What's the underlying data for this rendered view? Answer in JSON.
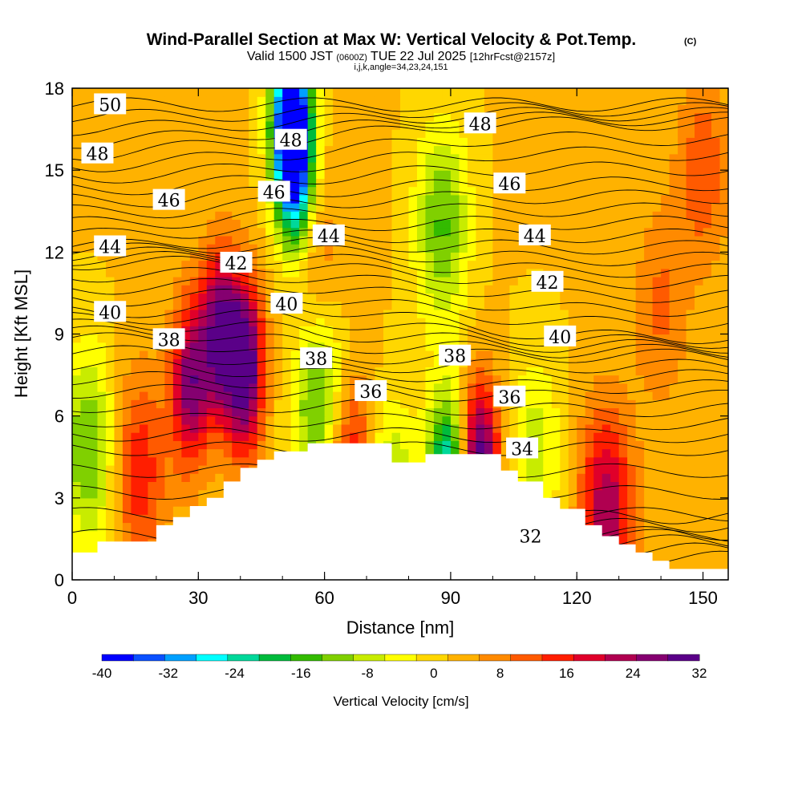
{
  "chart_data": {
    "type": "heatmap",
    "title": "Wind-Parallel Section at Max W: Vertical Velocity & Pot.Temp.",
    "copyright": "(C)",
    "subtitle_parts": [
      "Valid 1500 JST",
      "(0600Z)",
      "TUE 22 Jul 2025",
      "[12hrFcst@2157z]"
    ],
    "subtitle2": "i,j,k,angle=34,23,24,151",
    "xlabel": "Distance [nm]",
    "ylabel": "Height [Kft MSL]",
    "xlim": [
      0,
      156
    ],
    "ylim": [
      0,
      18
    ],
    "x_ticks": [
      "0",
      "30",
      "60",
      "90",
      "120",
      "150"
    ],
    "x_tick_values": [
      0,
      30,
      60,
      90,
      120,
      150
    ],
    "y_ticks": [
      "0",
      "3",
      "6",
      "9",
      "12",
      "15",
      "18"
    ],
    "y_tick_values": [
      0,
      3,
      6,
      9,
      12,
      15,
      18
    ],
    "colorbar": {
      "label": "Vertical Velocity [cm/s]",
      "tick_labels": [
        "-40",
        "-32",
        "-24",
        "-16",
        "-8",
        "0",
        "8",
        "16",
        "24",
        "32"
      ],
      "tick_values": [
        -40,
        -32,
        -24,
        -16,
        -8,
        0,
        8,
        16,
        24,
        32
      ],
      "colors": [
        "#0000ff",
        "#0a50ff",
        "#00a0ff",
        "#00ffff",
        "#00d89a",
        "#00bb3c",
        "#33bb00",
        "#80d000",
        "#c8ec00",
        "#ffff00",
        "#ffd700",
        "#ffb200",
        "#ff8a00",
        "#ff5a00",
        "#ff1e00",
        "#e0002a",
        "#b00050",
        "#850070",
        "#5a0088"
      ]
    },
    "vertical_velocity_centers": [
      {
        "x": 4,
        "y": 4.8,
        "w": -16
      },
      {
        "x": 16,
        "y": 4.0,
        "w": 14
      },
      {
        "x": 28,
        "y": 7.2,
        "w": 24
      },
      {
        "x": 35,
        "y": 9.0,
        "w": 26
      },
      {
        "x": 41,
        "y": 7.8,
        "w": 32
      },
      {
        "x": 52,
        "y": 17.0,
        "w": -40
      },
      {
        "x": 53,
        "y": 15.0,
        "w": -30
      },
      {
        "x": 59,
        "y": 6.5,
        "w": -20
      },
      {
        "x": 58,
        "y": 11.5,
        "w": 8
      },
      {
        "x": 66,
        "y": 4.0,
        "w": 20
      },
      {
        "x": 75,
        "y": 2.8,
        "w": -16
      },
      {
        "x": 88,
        "y": 13.0,
        "w": -16
      },
      {
        "x": 89,
        "y": 3.6,
        "w": -30
      },
      {
        "x": 97,
        "y": 4.0,
        "w": 32
      },
      {
        "x": 110,
        "y": 4.5,
        "w": -10
      },
      {
        "x": 127,
        "y": 2.5,
        "w": 22
      },
      {
        "x": 140,
        "y": 10.0,
        "w": 8
      },
      {
        "x": 150,
        "y": 15.0,
        "w": 10
      }
    ],
    "potential_temperature_contours": [
      {
        "value": "32",
        "x": 109,
        "y": 1.6
      },
      {
        "value": "34",
        "x": 107,
        "y": 4.8
      },
      {
        "value": "36",
        "x": 71,
        "y": 6.9
      },
      {
        "value": "36",
        "x": 104,
        "y": 6.7
      },
      {
        "value": "38",
        "x": 23,
        "y": 8.8
      },
      {
        "value": "38",
        "x": 58,
        "y": 8.1
      },
      {
        "value": "38",
        "x": 91,
        "y": 8.2
      },
      {
        "value": "40",
        "x": 9,
        "y": 9.8
      },
      {
        "value": "40",
        "x": 51,
        "y": 10.1
      },
      {
        "value": "40",
        "x": 116,
        "y": 8.9
      },
      {
        "value": "42",
        "x": 39,
        "y": 11.6
      },
      {
        "value": "42",
        "x": 113,
        "y": 10.9
      },
      {
        "value": "44",
        "x": 9,
        "y": 12.2
      },
      {
        "value": "44",
        "x": 61,
        "y": 12.6
      },
      {
        "value": "44",
        "x": 110,
        "y": 12.6
      },
      {
        "value": "46",
        "x": 23,
        "y": 13.9
      },
      {
        "value": "46",
        "x": 48,
        "y": 14.2
      },
      {
        "value": "46",
        "x": 104,
        "y": 14.5
      },
      {
        "value": "48",
        "x": 6,
        "y": 15.6
      },
      {
        "value": "48",
        "x": 52,
        "y": 16.1
      },
      {
        "value": "48",
        "x": 97,
        "y": 16.7
      },
      {
        "value": "50",
        "x": 9,
        "y": 17.4
      }
    ],
    "terrain_height_kft": [
      1.0,
      1.0,
      1.0,
      1.4,
      1.4,
      1.4,
      1.4,
      1.4,
      1.4,
      1.4,
      2.0,
      2.0,
      2.3,
      2.3,
      2.7,
      2.7,
      3.0,
      3.0,
      3.6,
      3.6,
      4.1,
      4.1,
      4.4,
      4.4,
      4.7,
      4.7,
      4.7,
      4.7,
      5.0,
      5.0,
      5.0,
      5.0,
      5.0,
      5.0,
      5.0,
      5.0,
      5.0,
      5.0,
      4.3,
      4.3,
      4.3,
      4.3,
      4.6,
      4.6,
      4.6,
      4.6,
      4.6,
      4.6,
      4.6,
      4.6,
      4.6,
      4.0,
      4.0,
      3.6,
      3.6,
      3.6,
      3.0,
      3.0,
      2.6,
      2.6,
      2.6,
      2.0,
      2.0,
      1.6,
      1.6,
      1.3,
      1.3,
      1.0,
      1.0,
      0.7,
      0.7,
      0.4,
      0.4,
      0.4,
      0.4,
      0.4,
      0.4,
      0.4,
      0.4
    ]
  }
}
